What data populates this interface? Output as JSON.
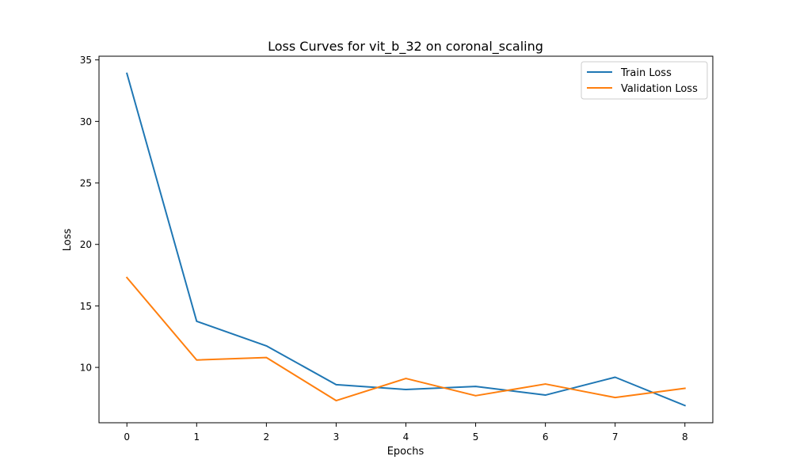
{
  "chart_data": {
    "type": "line",
    "title": "Loss Curves for vit_b_32 on coronal_scaling",
    "xlabel": "Epochs",
    "ylabel": "Loss",
    "x": [
      0,
      1,
      2,
      3,
      4,
      5,
      6,
      7,
      8
    ],
    "xlim": [
      -0.4,
      8.4
    ],
    "ylim": [
      5.5,
      35.3
    ],
    "xticks": [
      0,
      1,
      2,
      3,
      4,
      5,
      6,
      7,
      8
    ],
    "yticks": [
      10,
      15,
      20,
      25,
      30,
      35
    ],
    "grid": false,
    "legend_position": "top-right",
    "series": [
      {
        "name": "Train Loss",
        "color": "#1f77b4",
        "values": [
          33.9,
          13.75,
          11.75,
          8.6,
          8.2,
          8.45,
          7.75,
          9.2,
          6.9
        ]
      },
      {
        "name": "Validation Loss",
        "color": "#ff7f0e",
        "values": [
          17.3,
          10.6,
          10.8,
          7.3,
          9.1,
          7.7,
          8.65,
          7.55,
          8.3
        ]
      }
    ]
  }
}
